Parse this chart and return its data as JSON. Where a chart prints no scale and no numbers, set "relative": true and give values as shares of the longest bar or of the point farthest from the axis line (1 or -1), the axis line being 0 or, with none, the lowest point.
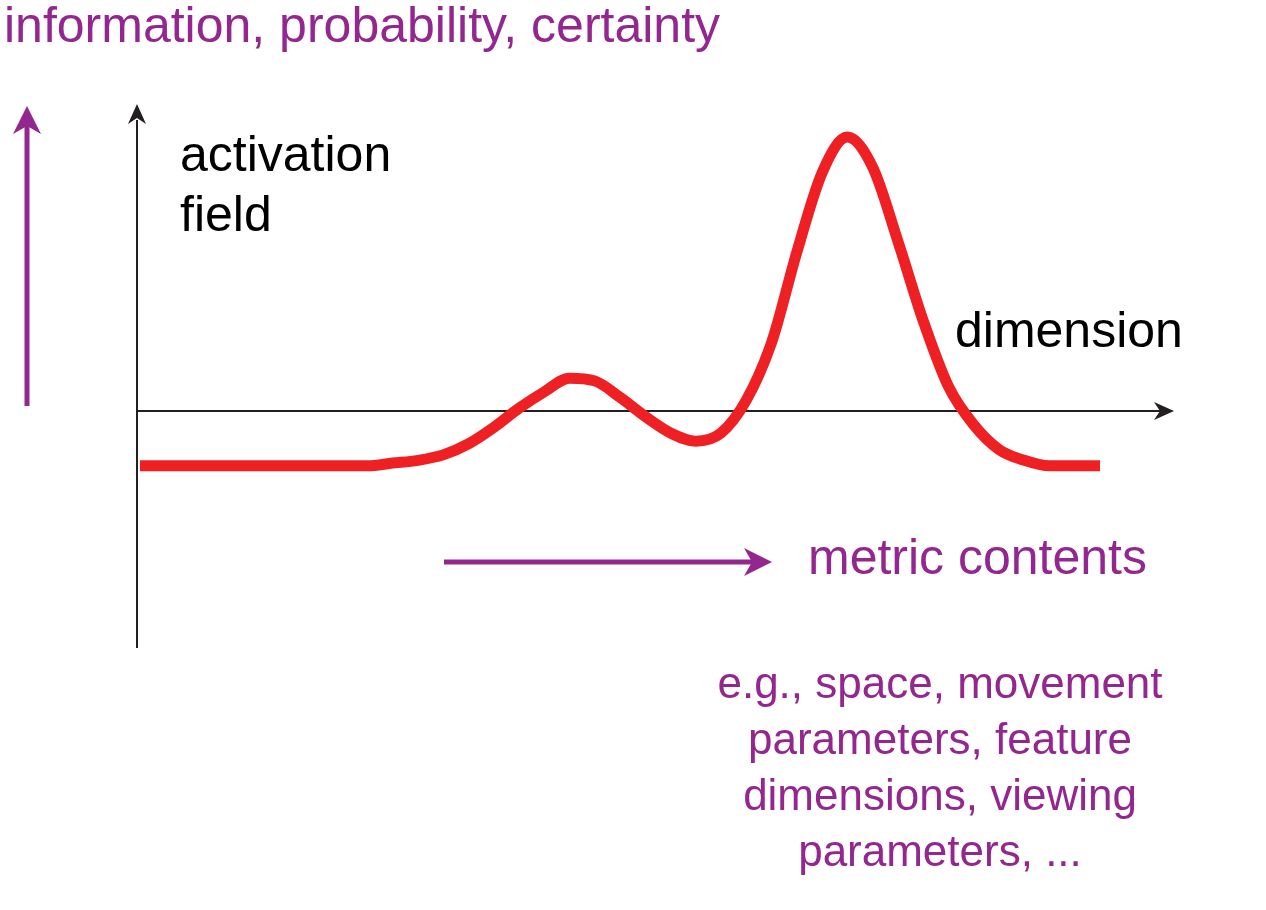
{
  "chart_data": {
    "type": "line",
    "relative": true,
    "xlabel": "dimension",
    "ylabel": "activation field",
    "color": "#ee2024",
    "categories": [
      null,
      null,
      null,
      null,
      null,
      null,
      null,
      null,
      null,
      null,
      null,
      null,
      null,
      null,
      null,
      null,
      null,
      null,
      null,
      null,
      null,
      null,
      null,
      null,
      null,
      null,
      null,
      null,
      null,
      null,
      null,
      null,
      null,
      null,
      null,
      null,
      null,
      null,
      null
    ],
    "values": [
      -0.2,
      -0.2,
      -0.2,
      -0.2,
      -0.2,
      -0.2,
      -0.2,
      -0.2,
      -0.2,
      -0.2,
      -0.19,
      -0.18,
      -0.16,
      -0.12,
      -0.06,
      0.01,
      0.07,
      0.12,
      0.11,
      0.05,
      -0.02,
      -0.08,
      -0.11,
      -0.08,
      0.04,
      0.25,
      0.58,
      0.87,
      1,
      0.89,
      0.62,
      0.33,
      0.09,
      -0.05,
      -0.14,
      -0.18,
      -0.2,
      -0.2,
      -0.2
    ],
    "annotations": [
      "information, probability, certainty",
      "metric contents",
      "e.g., space, movement parameters, feature dimensions, viewing parameters, ..."
    ]
  }
}
